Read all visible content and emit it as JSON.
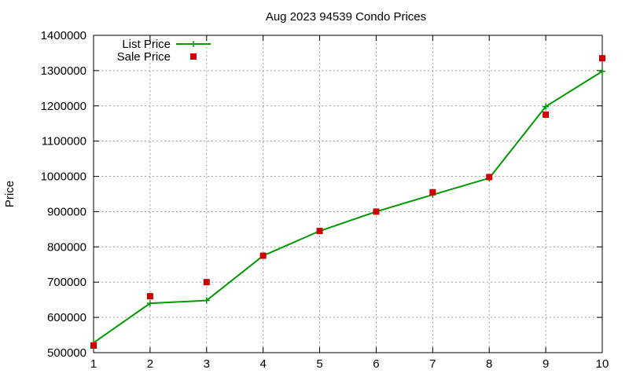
{
  "chart_data": {
    "type": "line",
    "title": "Aug 2023 94539 Condo Prices",
    "xlabel": "",
    "ylabel": "Price",
    "x": [
      1,
      2,
      3,
      4,
      5,
      6,
      7,
      8,
      9,
      10
    ],
    "xlim": [
      1,
      10
    ],
    "ylim": [
      500000,
      1400000
    ],
    "xticks": [
      1,
      2,
      3,
      4,
      5,
      6,
      7,
      8,
      9,
      10
    ],
    "yticks": [
      500000,
      600000,
      700000,
      800000,
      900000,
      1000000,
      1100000,
      1200000,
      1300000,
      1400000
    ],
    "grid": true,
    "legend_position": "top-left",
    "series": [
      {
        "name": "List Price",
        "style": "line-with-plus-markers",
        "color": "#009900",
        "values": [
          528000,
          640000,
          648000,
          775000,
          845000,
          900000,
          948000,
          995000,
          1198000,
          1298000
        ]
      },
      {
        "name": "Sale Price",
        "style": "square-markers",
        "color": "#cc0000",
        "values": [
          520000,
          660000,
          700000,
          775000,
          845000,
          900000,
          955000,
          998000,
          1175000,
          1335000
        ]
      }
    ]
  }
}
